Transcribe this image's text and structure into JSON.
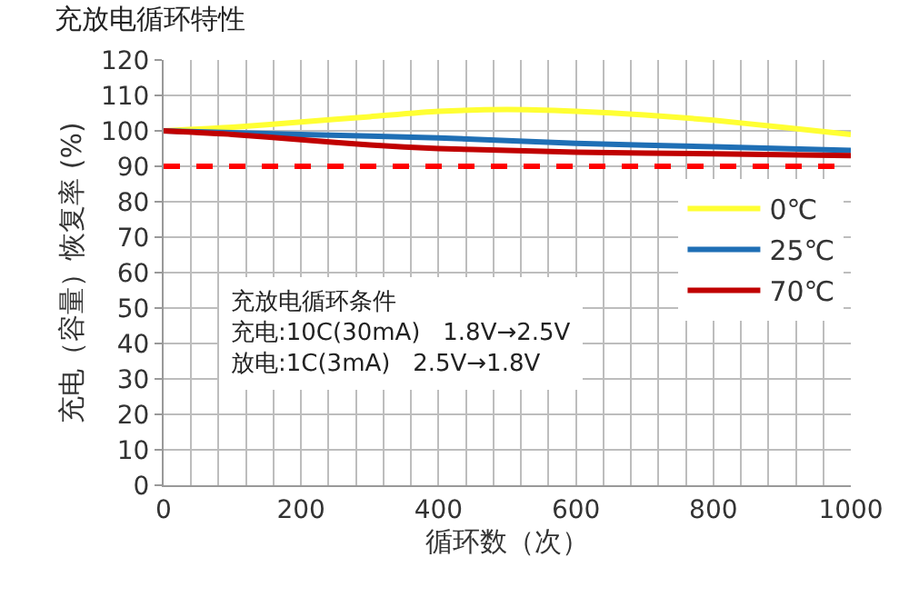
{
  "chart_data": {
    "type": "line",
    "title": "充放电循环特性",
    "xlabel": "循环数（次）",
    "ylabel": "充电（容量）恢复率 (%)",
    "xlim": [
      0,
      1000
    ],
    "xticks": [
      0,
      {
        "value": 40,
        "label": null
      },
      {
        "value": 80,
        "label": null
      },
      {
        "value": 120,
        "label": null
      },
      {
        "value": 160,
        "label": null
      },
      200,
      {
        "value": 240,
        "label": null
      },
      {
        "value": 280,
        "label": null
      },
      {
        "value": 320,
        "label": null
      },
      {
        "value": 360,
        "label": null
      },
      400,
      {
        "value": 440,
        "label": null
      },
      {
        "value": 480,
        "label": null
      },
      {
        "value": 520,
        "label": null
      },
      {
        "value": 560,
        "label": null
      },
      600,
      {
        "value": 640,
        "label": null
      },
      {
        "value": 680,
        "label": null
      },
      {
        "value": 720,
        "label": null
      },
      {
        "value": 760,
        "label": null
      },
      800,
      {
        "value": 840,
        "label": null
      },
      {
        "value": 880,
        "label": null
      },
      {
        "value": 920,
        "label": null
      },
      {
        "value": 960,
        "label": null
      },
      1000
    ],
    "ylim": [
      0,
      120
    ],
    "yticks": [
      0,
      10,
      20,
      30,
      40,
      50,
      60,
      70,
      80,
      90,
      100,
      110,
      120
    ],
    "grid": true,
    "legend": "right",
    "marker": "none",
    "line_style": "solid",
    "series": [
      {
        "name": "0℃",
        "color": "#ffff33",
        "x": [
          0,
          100,
          200,
          300,
          400,
          500,
          600,
          700,
          800,
          900,
          1000
        ],
        "values": [
          100,
          101,
          102.5,
          104,
          105.5,
          106,
          105.5,
          104.5,
          103,
          101,
          99
        ]
      },
      {
        "name": "25℃",
        "color": "#1f6fb5",
        "x": [
          0,
          200,
          400,
          600,
          800,
          1000
        ],
        "values": [
          100,
          99,
          98,
          96.5,
          95.5,
          94.5
        ]
      },
      {
        "name": "70℃",
        "color": "#c00000",
        "x": [
          0,
          100,
          200,
          300,
          400,
          500,
          600,
          800,
          1000
        ],
        "values": [
          100,
          99,
          97.5,
          96,
          95,
          94.5,
          94,
          93.5,
          93
        ]
      }
    ],
    "ref_lines": [
      {
        "axis": "y",
        "value": 90,
        "color": "#ff0000",
        "line_style": "dashed"
      }
    ],
    "annotations": [
      "充放电循环条件",
      "充电:10C(30mA)   1.8V→2.5V",
      "放电:1C(3mA)   2.5V→1.8V"
    ]
  }
}
